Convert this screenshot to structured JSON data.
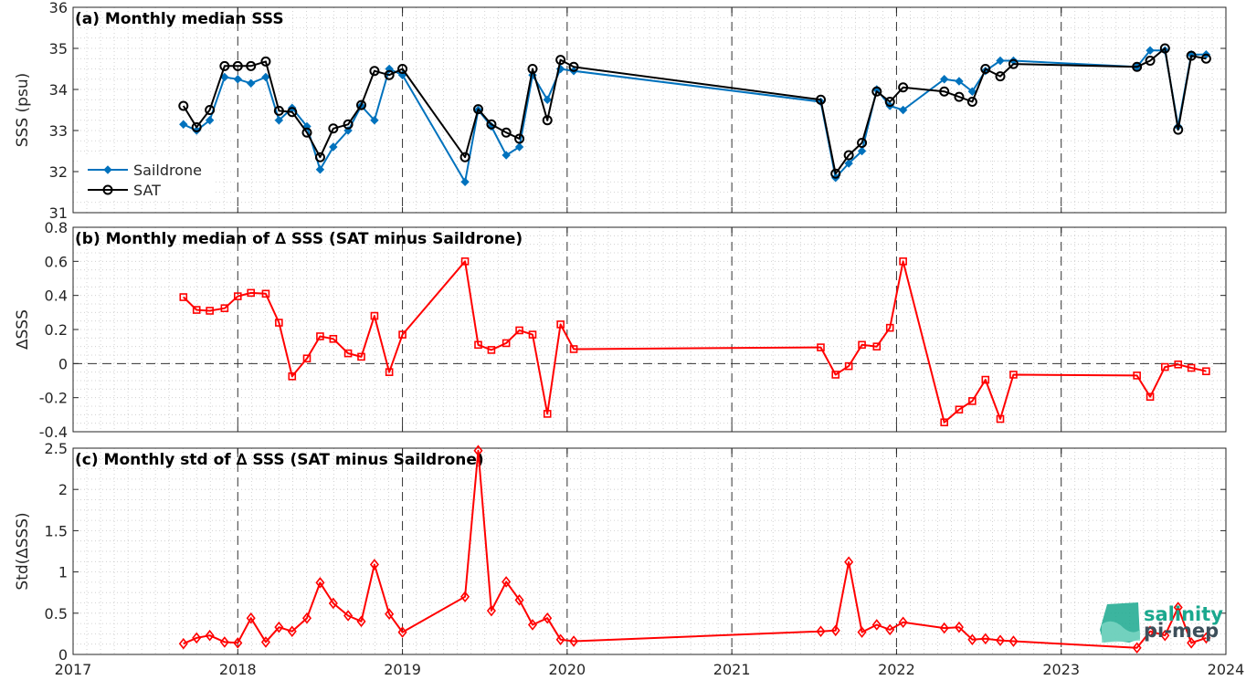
{
  "chart_data": [
    {
      "type": "line",
      "title": "(a) Monthly median SSS",
      "xlabel": "",
      "ylabel": "SSS (psu)",
      "ylim": [
        31,
        36
      ],
      "yticks": [
        31,
        32,
        33,
        34,
        35,
        36
      ],
      "xlim": [
        2017,
        2024
      ],
      "xticks": [
        2017,
        2018,
        2019,
        2020,
        2021,
        2022,
        2023,
        2024
      ],
      "grid": "minor dotted, dashed at year boundaries",
      "legend": "bottom-left",
      "series": [
        {
          "name": "Saildrone",
          "color": "#0072BD",
          "marker": "diamond-filled",
          "x": [
            2017.67,
            2017.75,
            2017.83,
            2017.92,
            2018.0,
            2018.08,
            2018.17,
            2018.25,
            2018.33,
            2018.42,
            2018.5,
            2018.58,
            2018.67,
            2018.75,
            2018.83,
            2018.92,
            2019.0,
            2019.38,
            2019.46,
            2019.54,
            2019.63,
            2019.71,
            2019.79,
            2019.88,
            2019.96,
            2020.04,
            2021.54,
            2021.63,
            2021.71,
            2021.79,
            2021.88,
            2021.96,
            2022.04,
            2022.29,
            2022.38,
            2022.46,
            2022.54,
            2022.63,
            2022.71,
            2023.46,
            2023.54,
            2023.63,
            2023.71,
            2023.79,
            2023.88
          ],
          "y": [
            33.15,
            33.0,
            33.25,
            34.3,
            34.25,
            34.15,
            34.3,
            33.25,
            33.55,
            33.1,
            32.05,
            32.6,
            33.0,
            33.6,
            33.25,
            34.5,
            34.35,
            31.75,
            33.5,
            33.1,
            32.4,
            32.6,
            34.35,
            33.75,
            34.5,
            34.45,
            33.7,
            31.85,
            32.2,
            32.5,
            34.0,
            33.6,
            33.5,
            34.25,
            34.2,
            33.95,
            34.45,
            34.7,
            34.7,
            34.55,
            34.95,
            34.95,
            33.1,
            34.85,
            34.85
          ]
        },
        {
          "name": "SAT",
          "color": "#000000",
          "marker": "circle-open",
          "x": [
            2017.67,
            2017.75,
            2017.83,
            2017.92,
            2018.0,
            2018.08,
            2018.17,
            2018.25,
            2018.33,
            2018.42,
            2018.5,
            2018.58,
            2018.67,
            2018.75,
            2018.83,
            2018.92,
            2019.0,
            2019.38,
            2019.46,
            2019.54,
            2019.63,
            2019.71,
            2019.79,
            2019.88,
            2019.96,
            2020.04,
            2021.54,
            2021.63,
            2021.71,
            2021.79,
            2021.88,
            2021.96,
            2022.04,
            2022.29,
            2022.38,
            2022.46,
            2022.54,
            2022.63,
            2022.71,
            2023.46,
            2023.54,
            2023.63,
            2023.71,
            2023.79,
            2023.88
          ],
          "y": [
            33.6,
            33.08,
            33.5,
            34.57,
            34.57,
            34.57,
            34.68,
            33.48,
            33.45,
            32.95,
            32.35,
            33.05,
            33.15,
            33.62,
            34.45,
            34.35,
            34.5,
            32.35,
            33.52,
            33.15,
            32.95,
            32.8,
            34.5,
            33.25,
            34.72,
            34.55,
            33.75,
            31.95,
            32.4,
            32.7,
            33.95,
            33.7,
            34.05,
            33.95,
            33.82,
            33.7,
            34.5,
            34.32,
            34.62,
            34.55,
            34.7,
            35.0,
            33.02,
            34.82,
            34.75
          ]
        }
      ]
    },
    {
      "type": "line",
      "title": "(b) Monthly median of ∆ SSS (SAT minus Saildrone)",
      "xlabel": "",
      "ylabel": "∆SSS",
      "ylim": [
        -0.4,
        0.8
      ],
      "yticks": [
        -0.4,
        -0.2,
        0,
        0.2,
        0.4,
        0.6,
        0.8
      ],
      "ytick_labels": [
        "-0.4",
        "-0.2",
        "0",
        "0.2",
        "0.4",
        "0.6",
        "0.8"
      ],
      "xlim": [
        2017,
        2024
      ],
      "reference_line": 0,
      "series": [
        {
          "color": "#FF0000",
          "marker": "square-open",
          "x": [
            2017.67,
            2017.75,
            2017.83,
            2017.92,
            2018.0,
            2018.08,
            2018.17,
            2018.25,
            2018.33,
            2018.42,
            2018.5,
            2018.58,
            2018.67,
            2018.75,
            2018.83,
            2018.92,
            2019.0,
            2019.38,
            2019.46,
            2019.54,
            2019.63,
            2019.71,
            2019.79,
            2019.88,
            2019.96,
            2020.04,
            2021.54,
            2021.63,
            2021.71,
            2021.79,
            2021.88,
            2021.96,
            2022.04,
            2022.29,
            2022.38,
            2022.46,
            2022.54,
            2022.63,
            2022.71,
            2023.46,
            2023.54,
            2023.63,
            2023.71,
            2023.79,
            2023.88
          ],
          "y": [
            0.39,
            0.315,
            0.31,
            0.325,
            0.395,
            0.415,
            0.41,
            0.24,
            -0.075,
            0.03,
            0.16,
            0.145,
            0.06,
            0.04,
            0.28,
            -0.05,
            0.17,
            0.6,
            0.11,
            0.08,
            0.12,
            0.195,
            0.17,
            -0.295,
            0.23,
            0.085,
            0.095,
            -0.065,
            -0.015,
            0.11,
            0.1,
            0.21,
            0.6,
            -0.345,
            -0.27,
            -0.22,
            -0.095,
            -0.325,
            -0.065,
            -0.07,
            -0.195,
            -0.02,
            -0.005,
            -0.025,
            -0.045
          ]
        }
      ]
    },
    {
      "type": "line",
      "title": "(c) Monthly std of ∆ SSS (SAT minus Saildrone)",
      "xlabel": "",
      "ylabel": "Std(∆SSS)",
      "ylim": [
        0,
        2.5
      ],
      "yticks": [
        0,
        0.5,
        1,
        1.5,
        2,
        2.5
      ],
      "ytick_labels": [
        "0",
        "0.5",
        "1",
        "1.5",
        "2",
        "2.5"
      ],
      "xlim": [
        2017,
        2024
      ],
      "xtick_labels": [
        "2017",
        "2018",
        "2019",
        "2020",
        "2021",
        "2022",
        "2023",
        "2024"
      ],
      "series": [
        {
          "color": "#FF0000",
          "marker": "diamond-open",
          "x": [
            2017.67,
            2017.75,
            2017.83,
            2017.92,
            2018.0,
            2018.08,
            2018.17,
            2018.25,
            2018.33,
            2018.42,
            2018.5,
            2018.58,
            2018.67,
            2018.75,
            2018.83,
            2018.92,
            2019.0,
            2019.38,
            2019.46,
            2019.54,
            2019.63,
            2019.71,
            2019.79,
            2019.88,
            2019.96,
            2020.04,
            2021.54,
            2021.63,
            2021.71,
            2021.79,
            2021.88,
            2021.96,
            2022.04,
            2022.29,
            2022.38,
            2022.46,
            2022.54,
            2022.63,
            2022.71,
            2023.46,
            2023.54,
            2023.63,
            2023.71,
            2023.79,
            2023.88
          ],
          "y": [
            0.13,
            0.2,
            0.23,
            0.15,
            0.14,
            0.44,
            0.15,
            0.33,
            0.28,
            0.44,
            0.87,
            0.62,
            0.47,
            0.4,
            1.09,
            0.49,
            0.27,
            0.7,
            2.47,
            0.53,
            0.88,
            0.66,
            0.36,
            0.44,
            0.18,
            0.16,
            0.28,
            0.29,
            1.12,
            0.27,
            0.36,
            0.3,
            0.39,
            0.32,
            0.33,
            0.18,
            0.19,
            0.17,
            0.16,
            0.08,
            0.28,
            0.23,
            0.57,
            0.14,
            0.2
          ]
        }
      ]
    }
  ],
  "logo": {
    "line1": "salinity",
    "line2": "pi-mep"
  }
}
